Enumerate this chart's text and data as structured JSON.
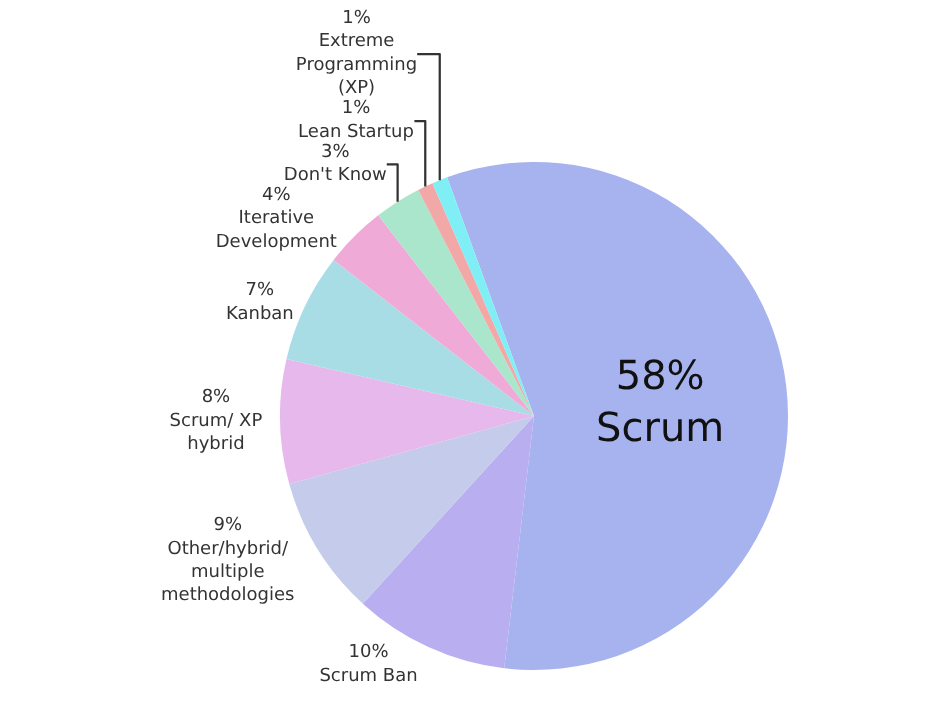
{
  "chart_data": {
    "type": "pie",
    "categories": [
      "Scrum",
      "Scrum Ban",
      "Other/hybrid/ multiple methodologies",
      "Scrum/ XP hybrid",
      "Kanban",
      "Iterative Development",
      "Don't Know",
      "Lean Startup",
      "Extreme Programming (XP)"
    ],
    "values": [
      58,
      10,
      9,
      8,
      7,
      4,
      3,
      1,
      1
    ],
    "value_labels": [
      "58%",
      "10%",
      "9%",
      "8%",
      "7%",
      "4%",
      "3%",
      "1%",
      "1%"
    ],
    "colors": [
      "#a7b3ee",
      "#b8aef0",
      "#c4cbeb",
      "#e6b8ec",
      "#a9dde6",
      "#f0aad8",
      "#a9e6cb",
      "#f3a8a8",
      "#80eef5"
    ]
  }
}
